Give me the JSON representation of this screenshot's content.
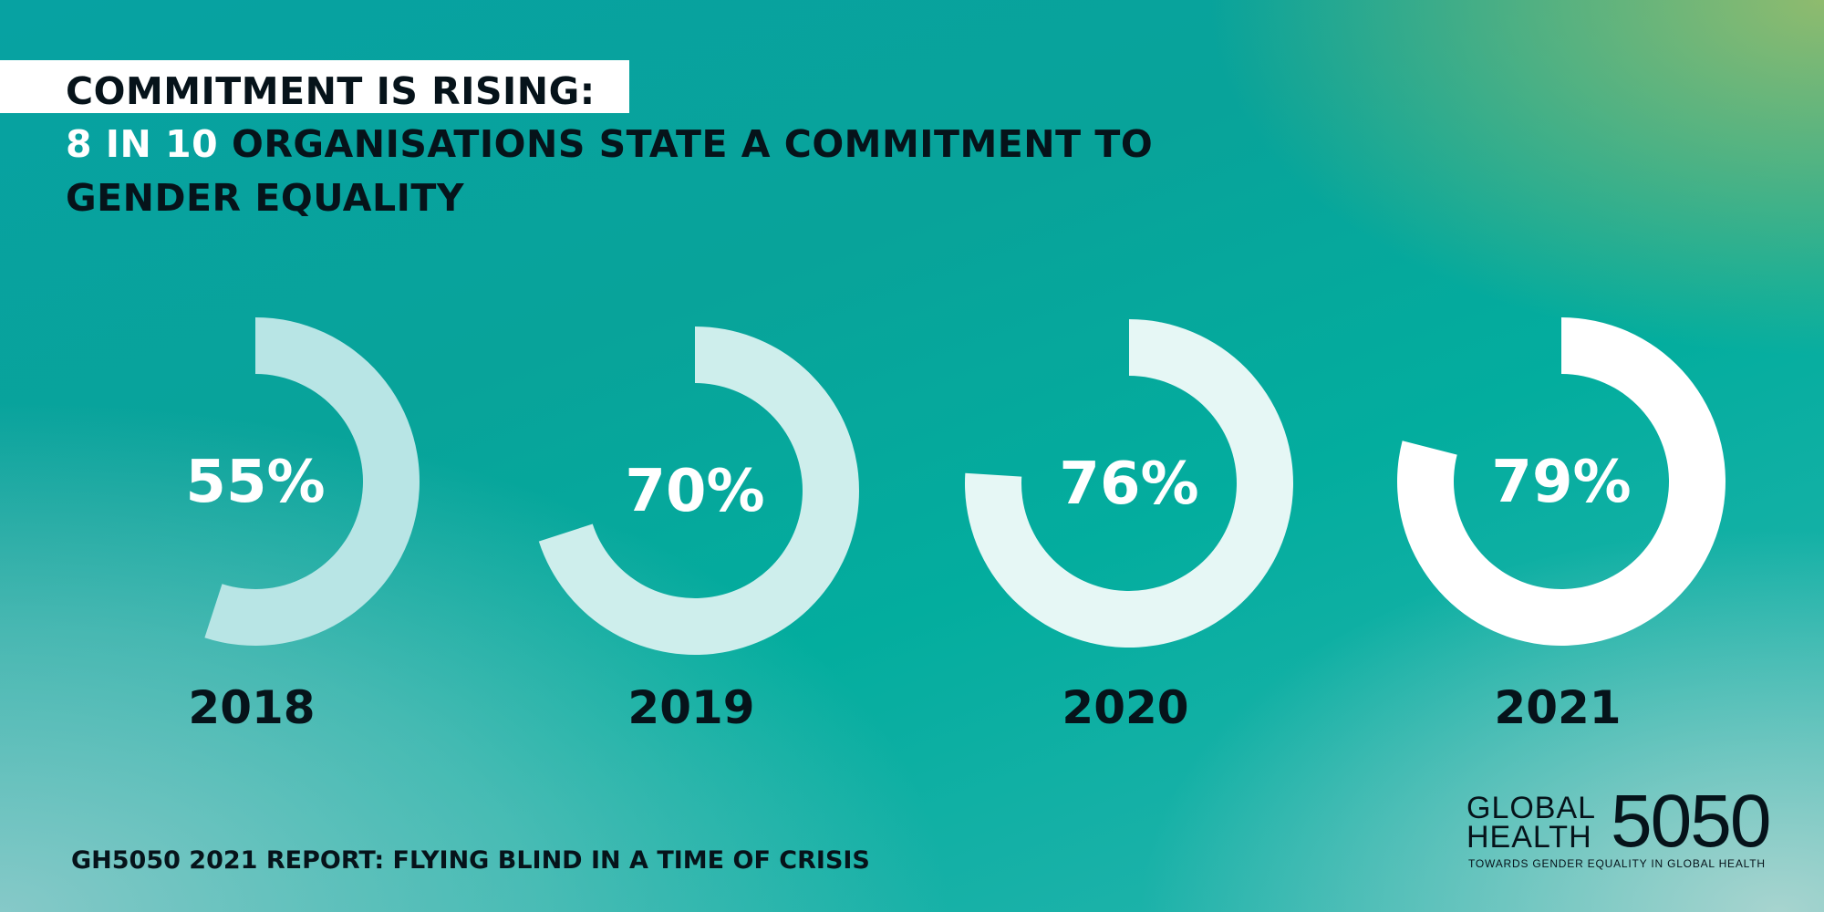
{
  "headline": {
    "line1": "COMMITMENT IS RISING:",
    "line2_accent": "8 IN 10",
    "line2_rest": " ORGANISATIONS STATE A COMMITMENT TO",
    "line3": "GENDER EQUALITY"
  },
  "chart_data": {
    "type": "donut",
    "title": "",
    "categories": [
      "2018",
      "2019",
      "2020",
      "2021"
    ],
    "values": [
      55,
      70,
      76,
      79
    ],
    "value_labels": [
      "55%",
      "70%",
      "76%",
      "79%"
    ],
    "unit": "%",
    "max": 100,
    "colors": [
      "#b8e5e5",
      "#ceeeec",
      "#e6f7f5",
      "#ffffff"
    ]
  },
  "footer": {
    "source": "GH5050 2021 REPORT: FLYING BLIND IN A TIME OF CRISIS"
  },
  "logo": {
    "line1": "GLOBAL",
    "line2": "HEALTH",
    "number": "5050",
    "tagline": "TOWARDS GENDER EQUALITY IN GLOBAL HEALTH"
  }
}
